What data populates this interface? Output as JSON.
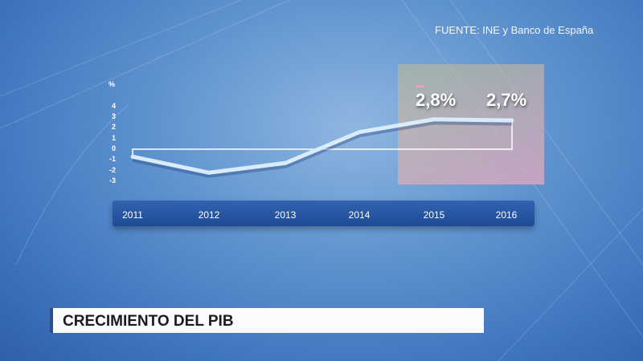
{
  "source": "FUENTE: INE y Banco de España",
  "title": "CRECIMIENTO DEL PIB",
  "chart_data": {
    "type": "line",
    "title": "",
    "ylabel": "%",
    "ylim": [
      -3,
      4
    ],
    "yticks": [
      "4",
      "3",
      "2",
      "1",
      "0",
      "-1",
      "-2",
      "-3"
    ],
    "categories": [
      "2011",
      "2012",
      "2013",
      "2014",
      "2015",
      "2016"
    ],
    "values": [
      -0.7,
      -2.2,
      -1.3,
      1.6,
      2.8,
      2.7
    ],
    "highlight": {
      "categories": [
        "2015",
        "2016"
      ],
      "labels": [
        "2,8%",
        "2,7%"
      ]
    },
    "colors": {
      "line": "#d8ecfb",
      "highlight": "#e8aabd",
      "axis_bar": "#2656a3"
    }
  }
}
